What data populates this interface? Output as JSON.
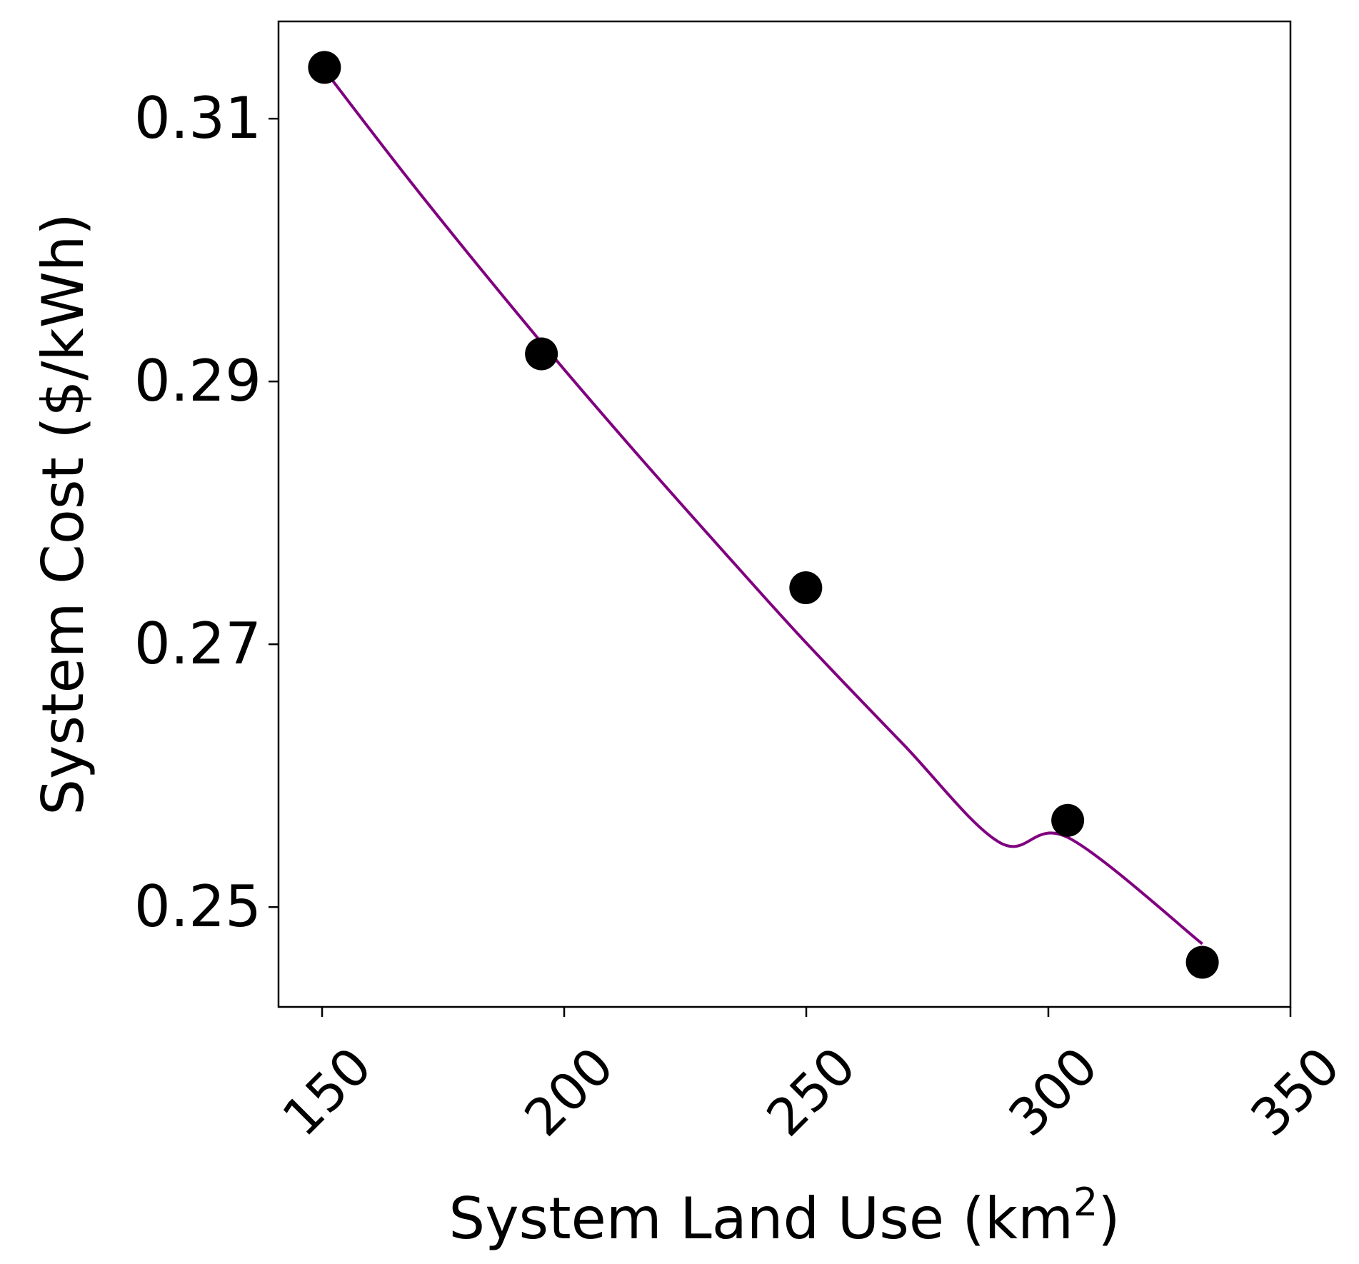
{
  "chart_data": {
    "type": "scatter",
    "title": "",
    "xlabel": "System Land Use (km",
    "xlabel_sup": "2",
    "xlabel_tail": ")",
    "ylabel": "System Cost ($/kWh)",
    "xlim": [
      141,
      350
    ],
    "ylim": [
      0.2424,
      0.3174
    ],
    "xticks": [
      150,
      200,
      250,
      300,
      350
    ],
    "xtick_labels": [
      "150",
      "200",
      "250",
      "300",
      "350"
    ],
    "yticks": [
      0.25,
      0.27,
      0.29,
      0.31
    ],
    "ytick_labels": [
      "0.25",
      "0.27",
      "0.29",
      "0.31"
    ],
    "grid": false,
    "legend": "none",
    "series": [
      {
        "type": "scatter",
        "color": "#000000",
        "points": [
          {
            "x": 150.5,
            "y": 0.3139
          },
          {
            "x": 195.3,
            "y": 0.2921
          },
          {
            "x": 249.9,
            "y": 0.2743
          },
          {
            "x": 304.0,
            "y": 0.2566
          },
          {
            "x": 331.8,
            "y": 0.2458
          }
        ]
      },
      {
        "type": "line",
        "color": "#800080",
        "points": [
          {
            "x": 150.5,
            "y": 0.3137
          },
          {
            "x": 170,
            "y": 0.3044
          },
          {
            "x": 195,
            "y": 0.2931
          },
          {
            "x": 215,
            "y": 0.2845
          },
          {
            "x": 235,
            "y": 0.2762
          },
          {
            "x": 250,
            "y": 0.2701
          },
          {
            "x": 270,
            "y": 0.2624
          },
          {
            "x": 290,
            "y": 0.2549
          },
          {
            "x": 304,
            "y": 0.2553
          },
          {
            "x": 331.8,
            "y": 0.2472
          }
        ]
      }
    ]
  }
}
